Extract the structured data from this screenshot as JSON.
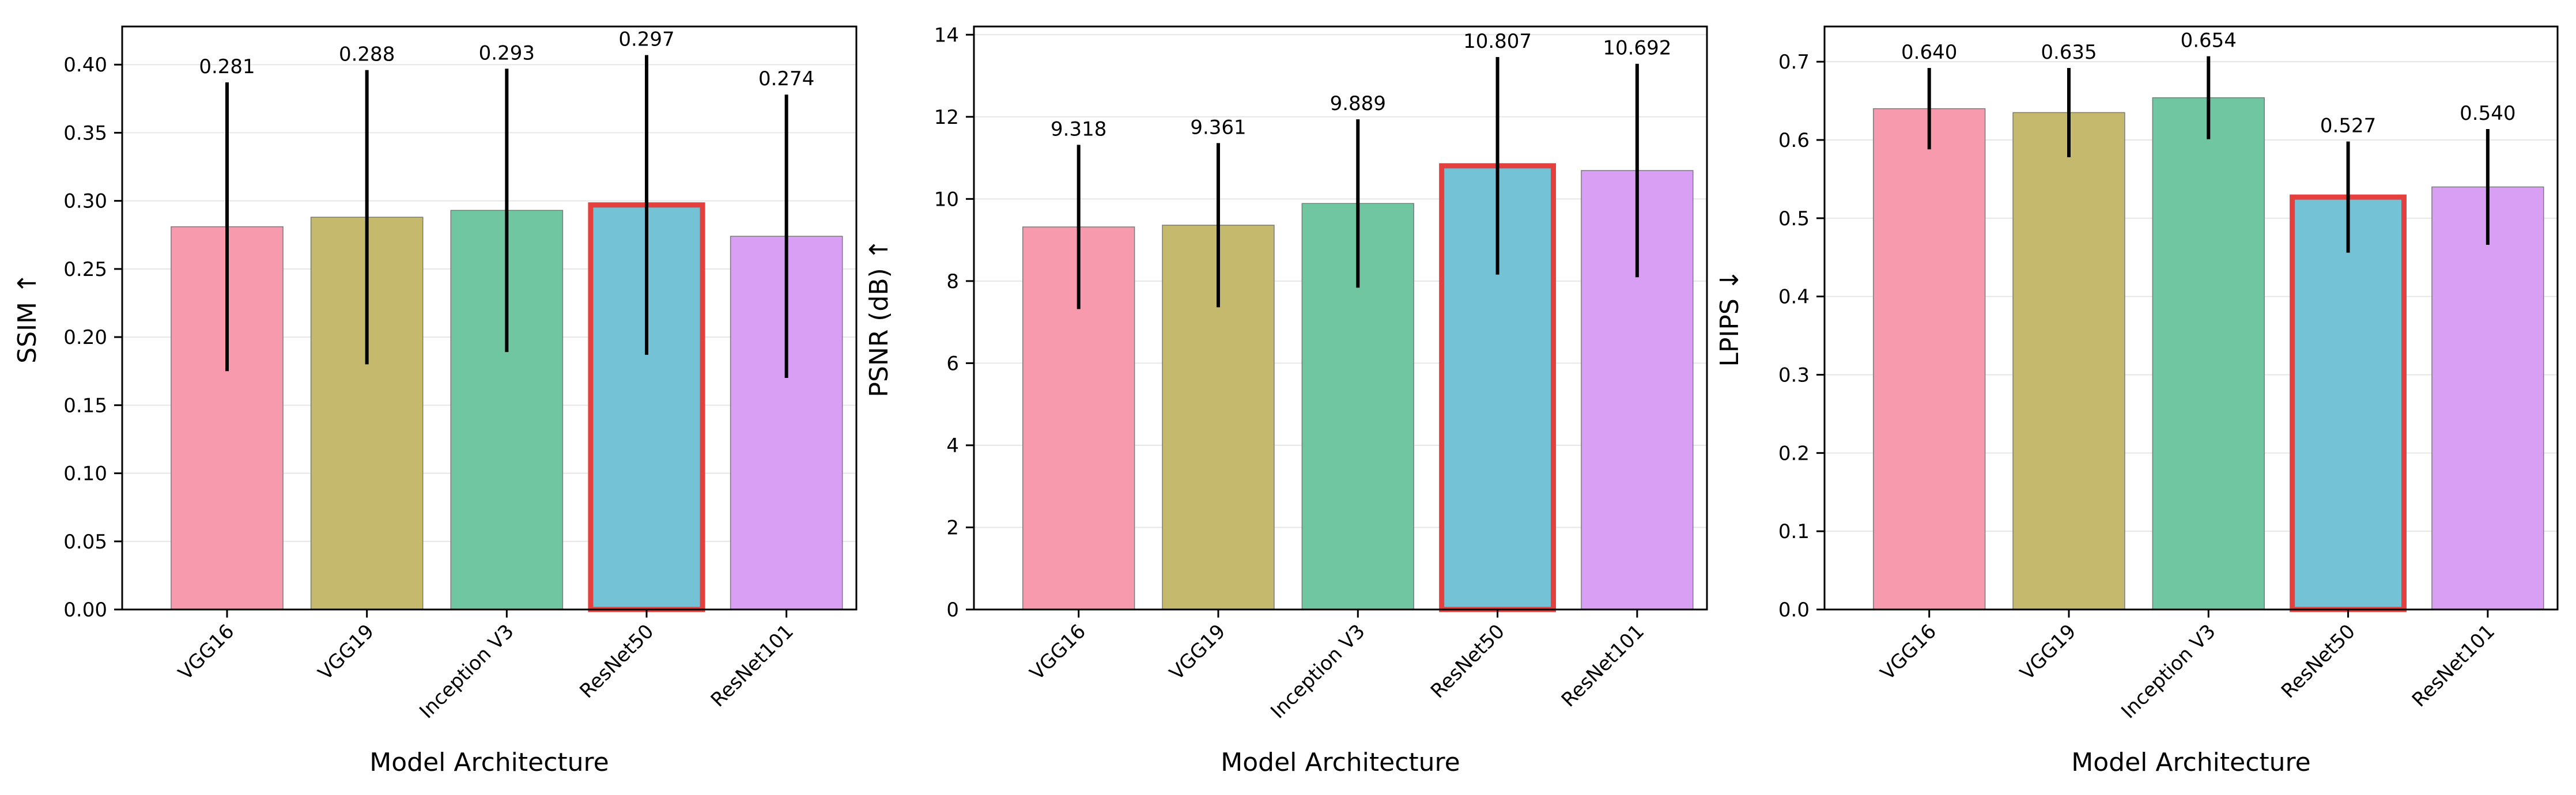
{
  "chart_data": [
    {
      "type": "bar",
      "categories": [
        "VGG16",
        "VGG19",
        "Inception V3",
        "ResNet50",
        "ResNet101"
      ],
      "values": [
        0.281,
        0.288,
        0.293,
        0.297,
        0.274
      ],
      "value_labels": [
        "0.281",
        "0.288",
        "0.293",
        "0.297",
        "0.274"
      ],
      "error": [
        0.106,
        0.108,
        0.104,
        0.11,
        0.104
      ],
      "highlight": "ResNet50",
      "xlabel": "Model Architecture",
      "ylabel": "SSIM ↑",
      "ylim": [
        0,
        0.428
      ],
      "yticks": [
        0.0,
        0.05,
        0.1,
        0.15,
        0.2,
        0.25,
        0.3,
        0.35,
        0.4
      ],
      "ytick_labels": [
        "0.00",
        "0.05",
        "0.10",
        "0.15",
        "0.20",
        "0.25",
        "0.30",
        "0.35",
        "0.40"
      ],
      "grid": "y"
    },
    {
      "type": "bar",
      "categories": [
        "VGG16",
        "VGG19",
        "Inception V3",
        "ResNet50",
        "ResNet101"
      ],
      "values": [
        9.318,
        9.361,
        9.889,
        10.807,
        10.692
      ],
      "value_labels": [
        "9.318",
        "9.361",
        "9.889",
        "10.807",
        "10.692"
      ],
      "error": [
        2.0,
        2.0,
        2.05,
        2.65,
        2.6
      ],
      "highlight": "ResNet50",
      "xlabel": "Model Architecture",
      "ylabel": "PSNR (dB) ↑",
      "ylim": [
        0,
        14.2
      ],
      "yticks": [
        0,
        2,
        4,
        6,
        8,
        10,
        12,
        14
      ],
      "ytick_labels": [
        "0",
        "2",
        "4",
        "6",
        "8",
        "10",
        "12",
        "14"
      ],
      "grid": "y"
    },
    {
      "type": "bar",
      "categories": [
        "VGG16",
        "VGG19",
        "Inception V3",
        "ResNet50",
        "ResNet101"
      ],
      "values": [
        0.64,
        0.635,
        0.654,
        0.527,
        0.54
      ],
      "value_labels": [
        "0.640",
        "0.635",
        "0.654",
        "0.527",
        "0.540"
      ],
      "error": [
        0.052,
        0.057,
        0.053,
        0.071,
        0.074
      ],
      "highlight": "ResNet50",
      "xlabel": "Model Architecture",
      "ylabel": "LPIPS ↓",
      "ylim": [
        0,
        0.745
      ],
      "yticks": [
        0.0,
        0.1,
        0.2,
        0.3,
        0.4,
        0.5,
        0.6,
        0.7
      ],
      "ytick_labels": [
        "0.0",
        "0.1",
        "0.2",
        "0.3",
        "0.4",
        "0.5",
        "0.6",
        "0.7"
      ],
      "grid": "y"
    }
  ],
  "colors": {
    "bars": [
      "#f89aae",
      "#c4b96d",
      "#6fc6a0",
      "#74c2d6",
      "#d89ff4"
    ],
    "highlight_edge": "#e5403d",
    "error_bar": "#000000",
    "grid": "#e6e6e6",
    "axis": "#000000"
  }
}
